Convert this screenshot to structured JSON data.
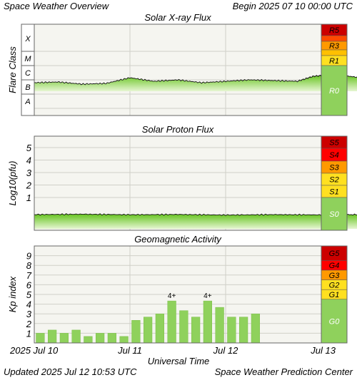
{
  "header": {
    "title": "Space Weather Overview",
    "begin": "Begin 2025 07 10 00:00 UTC"
  },
  "footer": {
    "updated": "Updated 2025 Jul 12 10:53 UTC",
    "center": "Space Weather Prediction Center"
  },
  "colors": {
    "panel_bg": "#f5f5f0",
    "grid": "#d0d0c8",
    "fill_top": "#62c21a",
    "fill_bottom": "#e6f6d2",
    "bar": "#8fd15c",
    "scale_green": "#8fd15c",
    "scale_yellow": "#ffe020",
    "scale_orange": "#ff9900",
    "scale_red": "#ff0000",
    "scale_darkred": "#cc0000"
  },
  "chart_data": [
    {
      "type": "area",
      "title": "Solar X-ray Flux",
      "ylabel": "Flare Class",
      "y_categories": [
        "A",
        "B",
        "C",
        "M",
        "X"
      ],
      "x": [
        0,
        6,
        12,
        18,
        24,
        30,
        36,
        42,
        48,
        54,
        60,
        66,
        70,
        72,
        76,
        82
      ],
      "values": [
        1.8,
        1.85,
        1.7,
        1.75,
        2.15,
        1.9,
        2.0,
        1.8,
        1.9,
        2.0,
        1.95,
        1.9,
        2.25,
        2.3,
        2.35,
        2.15
      ],
      "x_unit": "hours since 2025 Jul 10 00:00 UTC",
      "scale": [
        {
          "label": "R0",
          "color": "#8fd15c"
        },
        {
          "label": "R1",
          "color": "#ffe020"
        },
        {
          "label": "R3",
          "color": "#ff9900"
        },
        {
          "label": "R5",
          "color": "#cc0000"
        }
      ]
    },
    {
      "type": "area",
      "title": "Solar Proton Flux",
      "ylabel": "Log10(pfu)",
      "yticks": [
        1,
        2,
        3,
        4,
        5
      ],
      "x": [
        0,
        12,
        24,
        36,
        48,
        60,
        72,
        82
      ],
      "values": [
        -1.25,
        -1.22,
        -1.26,
        -1.24,
        -1.28,
        -1.25,
        -1.27,
        -1.25
      ],
      "x_unit": "hours since 2025 Jul 10 00:00 UTC",
      "scale": [
        {
          "label": "S0",
          "color": "#8fd15c"
        },
        {
          "label": "S1",
          "color": "#ffe020"
        },
        {
          "label": "S2",
          "color": "#ffe020"
        },
        {
          "label": "S3",
          "color": "#ff9900"
        },
        {
          "label": "S4",
          "color": "#ff0000"
        },
        {
          "label": "S5",
          "color": "#cc0000"
        }
      ]
    },
    {
      "type": "bar",
      "title": "Geomagnetic Activity",
      "ylabel": "Kp index",
      "yticks": [
        1,
        2,
        3,
        4,
        5,
        6,
        7,
        8,
        9
      ],
      "ylim": [
        0,
        10
      ],
      "values": [
        1.0,
        1.33,
        1.0,
        1.33,
        0.67,
        1.0,
        1.0,
        0.67,
        2.33,
        2.67,
        3.0,
        4.33,
        3.33,
        2.67,
        4.33,
        3.67,
        2.67,
        2.67,
        3.0
      ],
      "bar_labels": {
        "11": "4+",
        "14": "4+"
      },
      "interval_hours": 3,
      "scale": [
        {
          "label": "G0",
          "color": "#8fd15c"
        },
        {
          "label": "G1",
          "color": "#ffe020"
        },
        {
          "label": "G2",
          "color": "#ffe020"
        },
        {
          "label": "G3",
          "color": "#ff9900"
        },
        {
          "label": "G4",
          "color": "#ff0000"
        },
        {
          "label": "G5",
          "color": "#cc0000"
        }
      ]
    }
  ],
  "x_axis": {
    "label": "Universal Time",
    "ticks": [
      "2025 Jul 10",
      "Jul 11",
      "Jul 12",
      "Jul 13"
    ]
  }
}
